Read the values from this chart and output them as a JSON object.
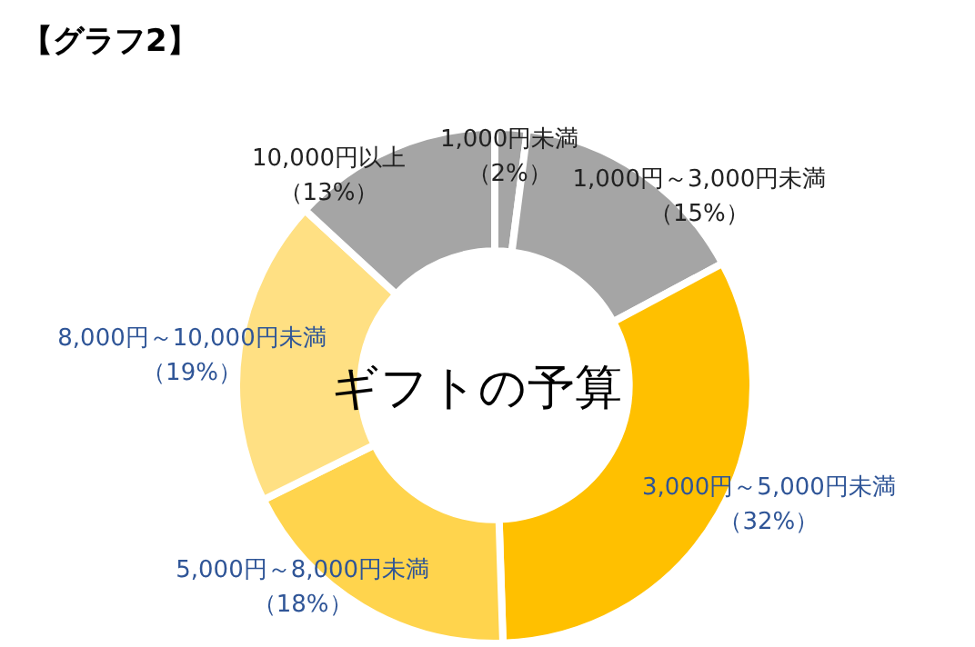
{
  "chart_data": {
    "type": "donut",
    "title": "【グラフ2】",
    "subtitle": "ギフトの予算",
    "categories": [
      "1,000円未満",
      "1,000円～3,000円未満",
      "3,000円～5,000円未満",
      "5,000円～8,000円未満",
      "8,000円～10,000円未満",
      "10,000円以上"
    ],
    "values": [
      2,
      15,
      32,
      18,
      19,
      13
    ],
    "colors": [
      "#a5a5a5",
      "#a5a5a5",
      "#ffc000",
      "#ffd44d",
      "#ffe083",
      "#a5a5a5"
    ],
    "value_labels": [
      "（2%）",
      "（15%）",
      "（32%）",
      "（18%）",
      "（19%）",
      "（13%）"
    ]
  }
}
